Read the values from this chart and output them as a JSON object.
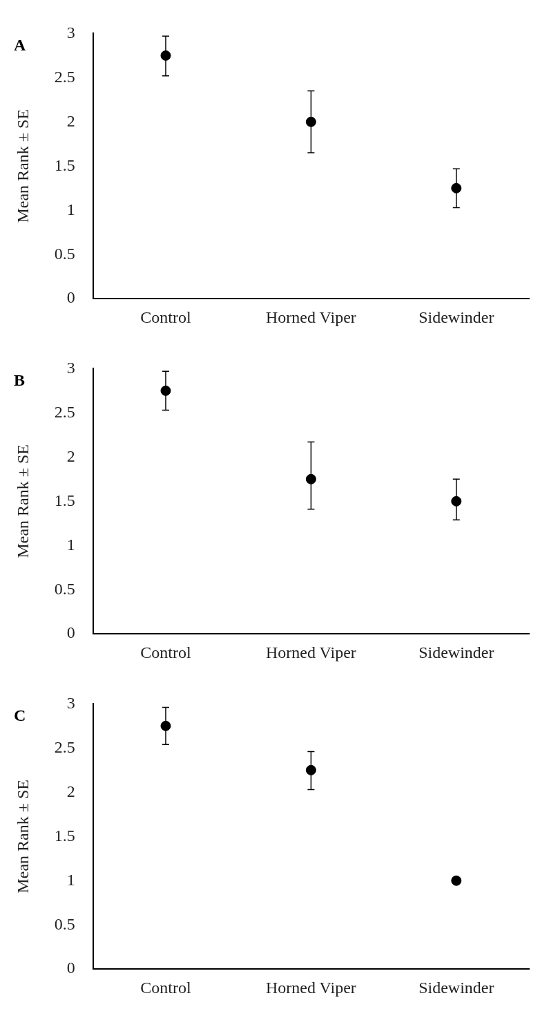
{
  "chart_data": [
    {
      "type": "scatter",
      "title": "A",
      "ylabel": "Mean Rank ± SE",
      "categories": [
        "Control",
        "Horned Viper",
        "Sidewinder"
      ],
      "marker": "circle",
      "grid": false,
      "legend": false,
      "series": [
        {
          "color": "#000000",
          "values": [
            2.75,
            2.0,
            1.25
          ],
          "errors": [
            [
              2.52,
              2.97
            ],
            [
              1.65,
              2.35
            ],
            [
              1.03,
              1.47
            ]
          ]
        }
      ],
      "ylim": [
        0,
        3
      ],
      "yticks": [
        0,
        0.5,
        1,
        1.5,
        2,
        2.5,
        3
      ]
    },
    {
      "type": "scatter",
      "title": "B",
      "ylabel": "Mean Rank ± SE",
      "categories": [
        "Control",
        "Horned Viper",
        "Sidewinder"
      ],
      "marker": "circle",
      "grid": false,
      "legend": false,
      "series": [
        {
          "color": "#000000",
          "values": [
            2.75,
            1.75,
            1.5
          ],
          "errors": [
            [
              2.53,
              2.97
            ],
            [
              1.41,
              2.17
            ],
            [
              1.29,
              1.75
            ]
          ]
        }
      ],
      "ylim": [
        0,
        3
      ],
      "yticks": [
        0,
        0.5,
        1,
        1.5,
        2,
        2.5,
        3
      ]
    },
    {
      "type": "scatter",
      "title": "C",
      "ylabel": "Mean Rank ± SE",
      "categories": [
        "Control",
        "Horned Viper",
        "Sidewinder"
      ],
      "marker": "circle",
      "grid": false,
      "legend": false,
      "series": [
        {
          "color": "#000000",
          "values": [
            2.75,
            2.25,
            1.0
          ],
          "errors": [
            [
              2.54,
              2.96
            ],
            [
              2.03,
              2.46
            ],
            null
          ]
        }
      ],
      "ylim": [
        0,
        3
      ],
      "yticks": [
        0,
        0.5,
        1,
        1.5,
        2,
        2.5,
        3
      ]
    }
  ]
}
